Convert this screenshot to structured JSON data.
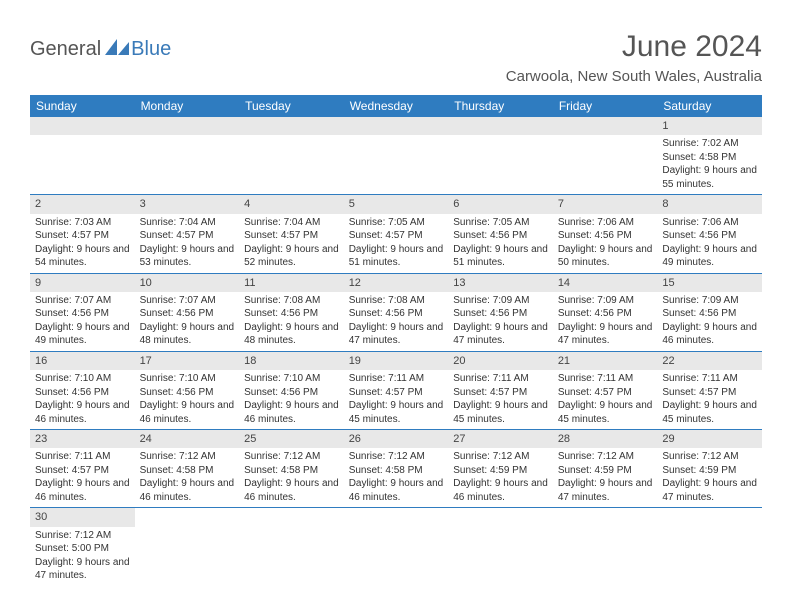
{
  "logo": {
    "part1": "General",
    "part2": "Blue"
  },
  "title": "June 2024",
  "location": "Carwoola, New South Wales, Australia",
  "colors": {
    "header_bg": "#2f7cc0",
    "header_text": "#ffffff",
    "daynum_bg": "#e8e8e8",
    "divider": "#2f7cc0",
    "logo_gray": "#555555",
    "logo_blue": "#3a7ab8"
  },
  "day_headers": [
    "Sunday",
    "Monday",
    "Tuesday",
    "Wednesday",
    "Thursday",
    "Friday",
    "Saturday"
  ],
  "weeks": [
    [
      null,
      null,
      null,
      null,
      null,
      null,
      {
        "n": "1",
        "sunrise": "7:02 AM",
        "sunset": "4:58 PM",
        "daylight": "9 hours and 55 minutes."
      }
    ],
    [
      {
        "n": "2",
        "sunrise": "7:03 AM",
        "sunset": "4:57 PM",
        "daylight": "9 hours and 54 minutes."
      },
      {
        "n": "3",
        "sunrise": "7:04 AM",
        "sunset": "4:57 PM",
        "daylight": "9 hours and 53 minutes."
      },
      {
        "n": "4",
        "sunrise": "7:04 AM",
        "sunset": "4:57 PM",
        "daylight": "9 hours and 52 minutes."
      },
      {
        "n": "5",
        "sunrise": "7:05 AM",
        "sunset": "4:57 PM",
        "daylight": "9 hours and 51 minutes."
      },
      {
        "n": "6",
        "sunrise": "7:05 AM",
        "sunset": "4:56 PM",
        "daylight": "9 hours and 51 minutes."
      },
      {
        "n": "7",
        "sunrise": "7:06 AM",
        "sunset": "4:56 PM",
        "daylight": "9 hours and 50 minutes."
      },
      {
        "n": "8",
        "sunrise": "7:06 AM",
        "sunset": "4:56 PM",
        "daylight": "9 hours and 49 minutes."
      }
    ],
    [
      {
        "n": "9",
        "sunrise": "7:07 AM",
        "sunset": "4:56 PM",
        "daylight": "9 hours and 49 minutes."
      },
      {
        "n": "10",
        "sunrise": "7:07 AM",
        "sunset": "4:56 PM",
        "daylight": "9 hours and 48 minutes."
      },
      {
        "n": "11",
        "sunrise": "7:08 AM",
        "sunset": "4:56 PM",
        "daylight": "9 hours and 48 minutes."
      },
      {
        "n": "12",
        "sunrise": "7:08 AM",
        "sunset": "4:56 PM",
        "daylight": "9 hours and 47 minutes."
      },
      {
        "n": "13",
        "sunrise": "7:09 AM",
        "sunset": "4:56 PM",
        "daylight": "9 hours and 47 minutes."
      },
      {
        "n": "14",
        "sunrise": "7:09 AM",
        "sunset": "4:56 PM",
        "daylight": "9 hours and 47 minutes."
      },
      {
        "n": "15",
        "sunrise": "7:09 AM",
        "sunset": "4:56 PM",
        "daylight": "9 hours and 46 minutes."
      }
    ],
    [
      {
        "n": "16",
        "sunrise": "7:10 AM",
        "sunset": "4:56 PM",
        "daylight": "9 hours and 46 minutes."
      },
      {
        "n": "17",
        "sunrise": "7:10 AM",
        "sunset": "4:56 PM",
        "daylight": "9 hours and 46 minutes."
      },
      {
        "n": "18",
        "sunrise": "7:10 AM",
        "sunset": "4:56 PM",
        "daylight": "9 hours and 46 minutes."
      },
      {
        "n": "19",
        "sunrise": "7:11 AM",
        "sunset": "4:57 PM",
        "daylight": "9 hours and 45 minutes."
      },
      {
        "n": "20",
        "sunrise": "7:11 AM",
        "sunset": "4:57 PM",
        "daylight": "9 hours and 45 minutes."
      },
      {
        "n": "21",
        "sunrise": "7:11 AM",
        "sunset": "4:57 PM",
        "daylight": "9 hours and 45 minutes."
      },
      {
        "n": "22",
        "sunrise": "7:11 AM",
        "sunset": "4:57 PM",
        "daylight": "9 hours and 45 minutes."
      }
    ],
    [
      {
        "n": "23",
        "sunrise": "7:11 AM",
        "sunset": "4:57 PM",
        "daylight": "9 hours and 46 minutes."
      },
      {
        "n": "24",
        "sunrise": "7:12 AM",
        "sunset": "4:58 PM",
        "daylight": "9 hours and 46 minutes."
      },
      {
        "n": "25",
        "sunrise": "7:12 AM",
        "sunset": "4:58 PM",
        "daylight": "9 hours and 46 minutes."
      },
      {
        "n": "26",
        "sunrise": "7:12 AM",
        "sunset": "4:58 PM",
        "daylight": "9 hours and 46 minutes."
      },
      {
        "n": "27",
        "sunrise": "7:12 AM",
        "sunset": "4:59 PM",
        "daylight": "9 hours and 46 minutes."
      },
      {
        "n": "28",
        "sunrise": "7:12 AM",
        "sunset": "4:59 PM",
        "daylight": "9 hours and 47 minutes."
      },
      {
        "n": "29",
        "sunrise": "7:12 AM",
        "sunset": "4:59 PM",
        "daylight": "9 hours and 47 minutes."
      }
    ],
    [
      {
        "n": "30",
        "sunrise": "7:12 AM",
        "sunset": "5:00 PM",
        "daylight": "9 hours and 47 minutes."
      },
      null,
      null,
      null,
      null,
      null,
      null
    ]
  ],
  "labels": {
    "sunrise": "Sunrise: ",
    "sunset": "Sunset: ",
    "daylight": "Daylight: "
  }
}
